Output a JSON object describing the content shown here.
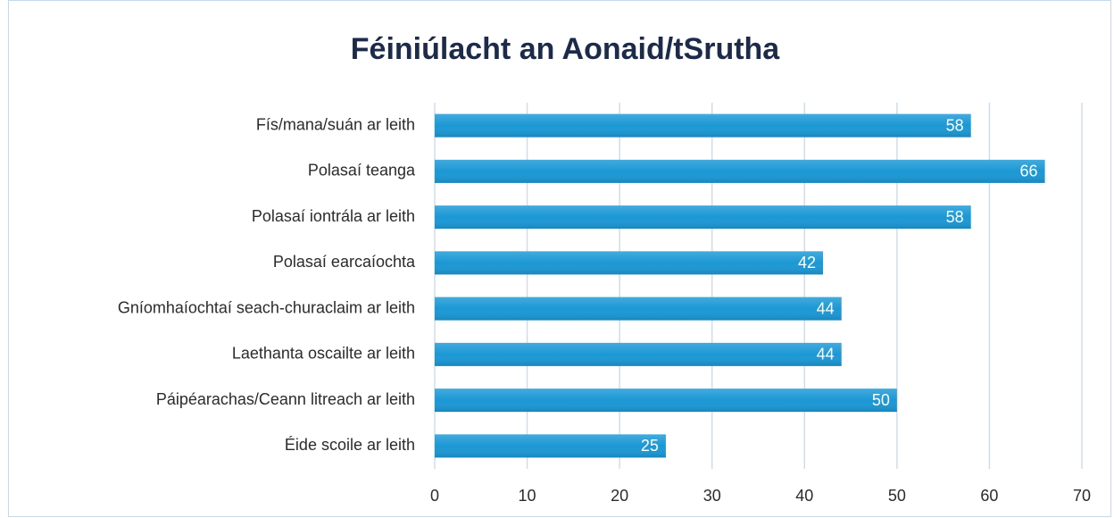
{
  "chart_data": {
    "type": "bar",
    "orientation": "horizontal",
    "title": "Féiniúlacht an Aonaid/tSrutha",
    "categories": [
      "Fís/mana/suán ar leith",
      "Polasaí teanga",
      "Polasaí iontrála ar leith",
      "Polasaí earcaíochta",
      "Gníomhaíochtaí seach-churaclaim ar leith",
      "Laethanta oscailte ar leith",
      "Páipéarachas/Ceann litreach ar leith",
      "Éide scoile ar leith"
    ],
    "values": [
      58,
      66,
      58,
      42,
      44,
      44,
      50,
      25
    ],
    "color": "#1b98d5",
    "xlim": [
      0,
      70
    ],
    "xticks": [
      0,
      10,
      20,
      30,
      40,
      50,
      60,
      70
    ],
    "grid": true
  }
}
